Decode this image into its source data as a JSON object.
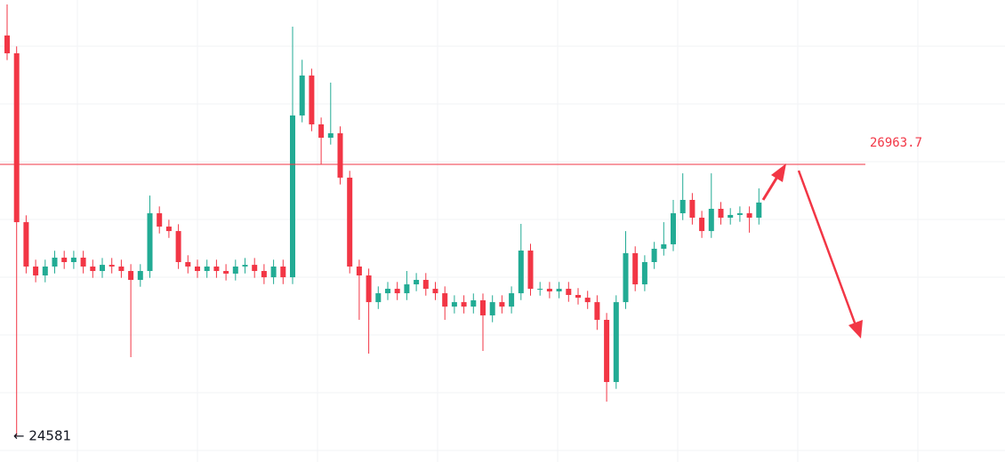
{
  "chart_data": {
    "type": "candlestick",
    "open": [
      28093,
      27937,
      26457,
      26068,
      25990,
      26068,
      26146,
      26107,
      26146,
      26068,
      26029,
      26083,
      26068,
      26029,
      25951,
      26029,
      26535,
      26418,
      26379,
      26107,
      26068,
      26029,
      26068,
      26029,
      26006,
      26068,
      26083,
      26029,
      25974,
      26068,
      25974,
      27392,
      27742,
      27314,
      27197,
      27236,
      26847,
      26068,
      25990,
      25756,
      25834,
      25873,
      25834,
      25912,
      25951,
      25873,
      25834,
      25717,
      25756,
      25717,
      25772,
      25640,
      25756,
      25717,
      25834,
      26208,
      25873,
      25873,
      25850,
      25873,
      25819,
      25795,
      25756,
      25601,
      25056,
      25756,
      26185,
      25912,
      26107,
      26224,
      26263,
      26535,
      26652,
      26496,
      26379,
      26574,
      26496,
      26520,
      26535,
      26496
    ],
    "high": [
      28365,
      27997,
      26517,
      26128,
      26128,
      26206,
      26206,
      26206,
      26206,
      26128,
      26143,
      26143,
      26128,
      26089,
      26089,
      26690,
      26595,
      26478,
      26439,
      26167,
      26128,
      26128,
      26128,
      26089,
      26128,
      26143,
      26143,
      26089,
      26128,
      26128,
      28170,
      27880,
      27802,
      27374,
      27680,
      27296,
      26907,
      26128,
      26050,
      25894,
      25933,
      25933,
      26029,
      26011,
      26011,
      25933,
      25894,
      25816,
      25816,
      25832,
      25832,
      25816,
      25816,
      25894,
      26442,
      26268,
      25933,
      25933,
      25933,
      25933,
      25879,
      25855,
      25816,
      25661,
      25816,
      26379,
      26245,
      26167,
      26284,
      26457,
      26652,
      26885,
      26712,
      26556,
      26885,
      26634,
      26580,
      26595,
      26595,
      26753
    ],
    "low": [
      27877,
      24581,
      26008,
      25930,
      25930,
      26008,
      26047,
      26047,
      26008,
      25969,
      25969,
      26008,
      25969,
      25274,
      25891,
      25969,
      26358,
      26319,
      26047,
      26008,
      25969,
      25969,
      25969,
      25946,
      25946,
      26008,
      25969,
      25914,
      25914,
      25914,
      25914,
      27332,
      27254,
      26964,
      27137,
      26787,
      26008,
      25601,
      25305,
      25696,
      25774,
      25774,
      25774,
      25852,
      25813,
      25774,
      25601,
      25657,
      25657,
      25657,
      25328,
      25580,
      25657,
      25657,
      25774,
      25813,
      25813,
      25790,
      25790,
      25759,
      25735,
      25696,
      25513,
      24884,
      24996,
      25696,
      25852,
      25852,
      26047,
      26164,
      26203,
      26475,
      26436,
      26319,
      26319,
      26436,
      26436,
      26460,
      26365,
      26436
    ],
    "close": [
      27937,
      26457,
      26068,
      25990,
      26068,
      26146,
      26107,
      26146,
      26068,
      26029,
      26083,
      26068,
      26029,
      25951,
      26029,
      26535,
      26418,
      26379,
      26107,
      26068,
      26029,
      26068,
      26029,
      26006,
      26068,
      26083,
      26029,
      25974,
      26068,
      25974,
      27392,
      27742,
      27314,
      27197,
      27236,
      26847,
      26068,
      25990,
      25756,
      25834,
      25873,
      25834,
      25912,
      25951,
      25873,
      25834,
      25717,
      25756,
      25717,
      25772,
      25640,
      25756,
      25717,
      25834,
      26208,
      25873,
      25873,
      25850,
      25873,
      25819,
      25795,
      25756,
      25601,
      25056,
      25756,
      26185,
      25912,
      26107,
      26224,
      26263,
      26535,
      26652,
      26496,
      26379,
      26574,
      26496,
      26520,
      26535,
      26496,
      26629
    ],
    "up_color": "#22ab94",
    "down_color": "#f23645",
    "line_color": "#f23645",
    "ylim": [
      24355,
      28404
    ],
    "price_line": 26963.7,
    "low_marker": {
      "value": 24581,
      "label": "← 24581"
    }
  }
}
